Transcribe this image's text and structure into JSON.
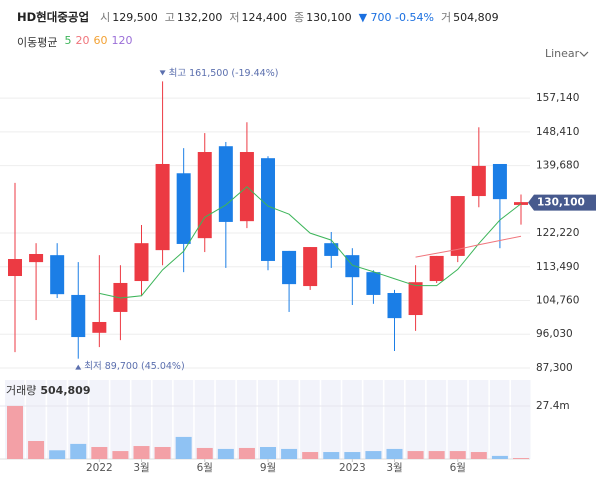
{
  "chart_data": {
    "type": "candlestick",
    "title": "HD현대중공업",
    "quote": [
      {
        "label": "시",
        "value": "129,500"
      },
      {
        "label": "고",
        "value": "132,200"
      },
      {
        "label": "저",
        "value": "124,400"
      },
      {
        "label": "종",
        "value": "130,100"
      }
    ],
    "change": "▼ 700 -0.54%",
    "volume_quote": {
      "label": "거",
      "value": "504,809"
    },
    "ma_title": "이동평균",
    "scale_mode": "Linear",
    "categories": [
      null,
      null,
      null,
      null,
      "2022",
      null,
      "3월",
      null,
      null,
      "6월",
      null,
      null,
      "9월",
      null,
      null,
      null,
      "2023",
      null,
      "3월",
      null,
      null,
      "6월",
      null,
      null,
      null
    ],
    "open": [
      111100,
      114700,
      116500,
      106200,
      96400,
      101800,
      109800,
      117800,
      137700,
      120900,
      144700,
      125300,
      141600,
      117600,
      108500,
      119600,
      116500,
      112100,
      106700,
      101000,
      109800,
      116300,
      131800,
      140100,
      129500
    ],
    "high": [
      135200,
      119600,
      119600,
      114700,
      116500,
      113900,
      124300,
      161500,
      144200,
      148100,
      145800,
      150900,
      142100,
      117600,
      118600,
      122500,
      118300,
      112600,
      107500,
      113900,
      116300,
      131800,
      149600,
      140100,
      132200
    ],
    "low": [
      91400,
      99700,
      105400,
      89700,
      92700,
      94500,
      105900,
      113900,
      112100,
      117300,
      113200,
      123500,
      112600,
      101800,
      107500,
      113200,
      103600,
      103900,
      91700,
      96900,
      109300,
      114700,
      128900,
      118300,
      124400
    ],
    "close": [
      115500,
      116800,
      106400,
      95300,
      99200,
      109300,
      119600,
      140100,
      119400,
      143200,
      125100,
      143200,
      115000,
      109000,
      118600,
      116300,
      110800,
      106200,
      100200,
      109500,
      116300,
      131800,
      139600,
      131000,
      130100
    ],
    "up_color": "#ec3a43",
    "down_color": "#1b7ee6",
    "ylim": [
      84700,
      166500
    ],
    "yticks": [
      {
        "value": 87300,
        "label": "87,300"
      },
      {
        "value": 96030,
        "label": "96,030"
      },
      {
        "value": 104760,
        "label": "104,760"
      },
      {
        "value": 113490,
        "label": "113,490"
      },
      {
        "value": 122220,
        "label": "122,220"
      },
      {
        "value": 139680,
        "label": "139,680"
      },
      {
        "value": 148410,
        "label": "148,410"
      },
      {
        "value": 157140,
        "label": "157,140"
      }
    ],
    "grid": true,
    "moving_averages": [
      {
        "name": "5",
        "color": "#3db55a",
        "values": [
          null,
          null,
          null,
          null,
          106600,
          105400,
          106000,
          112700,
          117500,
          126300,
          129500,
          134200,
          129200,
          127100,
          122200,
          120400,
          113900,
          112200,
          110400,
          108600,
          108600,
          112800,
          119500,
          125600,
          129800
        ]
      },
      {
        "name": "20",
        "color": "#f0757c",
        "values": [
          null,
          null,
          null,
          null,
          null,
          null,
          null,
          null,
          null,
          null,
          null,
          null,
          null,
          null,
          null,
          null,
          null,
          null,
          null,
          116000,
          117000,
          118000,
          119200,
          120300,
          121400
        ]
      },
      {
        "name": "60",
        "color": "#f3a234"
      },
      {
        "name": "120",
        "color": "#9b6fd8"
      }
    ],
    "max_label": "최고 161,500 (-19.44%)",
    "min_label": "최저 89,700 (45.04%)",
    "annotation_color": "#5b6fae",
    "last_label": "130,100",
    "last_label_color": "#475a8e",
    "volume": {
      "title": "거래량",
      "title_value": "504,809",
      "values": [
        27.4,
        9.3,
        4.5,
        7.8,
        6.2,
        4.1,
        6.7,
        6.2,
        11.4,
        5.7,
        5.2,
        5.7,
        6.2,
        5.2,
        3.6,
        3.6,
        3.6,
        4.1,
        5.2,
        4.1,
        4.1,
        4.1,
        3.6,
        1.6,
        0.504809
      ],
      "ylim": [
        0,
        40.8
      ],
      "yticks": [
        {
          "value": 27.4,
          "label": "27.4m"
        }
      ],
      "up_color": "#f3a0a6",
      "down_color": "#8fc2f3"
    }
  }
}
